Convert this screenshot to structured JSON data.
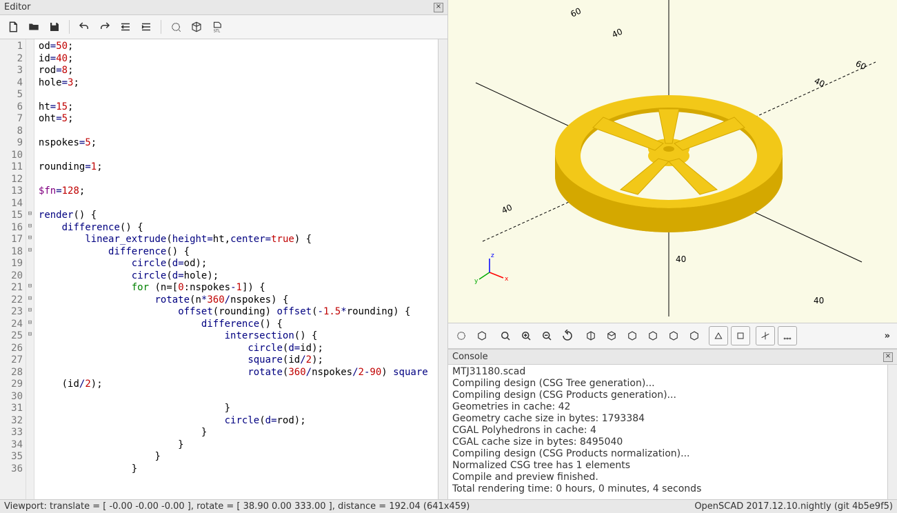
{
  "editor": {
    "title": "Editor",
    "toolbar_icons": [
      "new-file",
      "open-file",
      "save-file",
      "undo",
      "redo",
      "unindent",
      "indent",
      "preview",
      "render",
      "export-stl"
    ],
    "code_lines": [
      [
        {
          "t": "od",
          "c": "ident"
        },
        {
          "t": "=",
          "c": "op"
        },
        {
          "t": "50",
          "c": "num"
        },
        {
          "t": ";",
          "c": "punct"
        }
      ],
      [
        {
          "t": "id",
          "c": "ident"
        },
        {
          "t": "=",
          "c": "op"
        },
        {
          "t": "40",
          "c": "num"
        },
        {
          "t": ";",
          "c": "punct"
        }
      ],
      [
        {
          "t": "rod",
          "c": "ident"
        },
        {
          "t": "=",
          "c": "op"
        },
        {
          "t": "8",
          "c": "num"
        },
        {
          "t": ";",
          "c": "punct"
        }
      ],
      [
        {
          "t": "hole",
          "c": "ident"
        },
        {
          "t": "=",
          "c": "op"
        },
        {
          "t": "3",
          "c": "num"
        },
        {
          "t": ";",
          "c": "punct"
        }
      ],
      [],
      [
        {
          "t": "ht",
          "c": "ident"
        },
        {
          "t": "=",
          "c": "op"
        },
        {
          "t": "15",
          "c": "num"
        },
        {
          "t": ";",
          "c": "punct"
        }
      ],
      [
        {
          "t": "oht",
          "c": "ident"
        },
        {
          "t": "=",
          "c": "op"
        },
        {
          "t": "5",
          "c": "num"
        },
        {
          "t": ";",
          "c": "punct"
        }
      ],
      [],
      [
        {
          "t": "nspokes",
          "c": "ident"
        },
        {
          "t": "=",
          "c": "op"
        },
        {
          "t": "5",
          "c": "num"
        },
        {
          "t": ";",
          "c": "punct"
        }
      ],
      [],
      [
        {
          "t": "rounding",
          "c": "ident"
        },
        {
          "t": "=",
          "c": "op"
        },
        {
          "t": "1",
          "c": "num"
        },
        {
          "t": ";",
          "c": "punct"
        }
      ],
      [],
      [
        {
          "t": "$fn",
          "c": "spec"
        },
        {
          "t": "=",
          "c": "op"
        },
        {
          "t": "128",
          "c": "num"
        },
        {
          "t": ";",
          "c": "punct"
        }
      ],
      [],
      [
        {
          "t": "render",
          "c": "func"
        },
        {
          "t": "() {",
          "c": "punct"
        }
      ],
      [
        {
          "t": "    ",
          "c": "ws"
        },
        {
          "t": "difference",
          "c": "func"
        },
        {
          "t": "() {",
          "c": "punct"
        }
      ],
      [
        {
          "t": "        ",
          "c": "ws"
        },
        {
          "t": "linear_extrude",
          "c": "func"
        },
        {
          "t": "(",
          "c": "punct"
        },
        {
          "t": "height",
          "c": "param"
        },
        {
          "t": "=",
          "c": "op"
        },
        {
          "t": "ht",
          "c": "ident"
        },
        {
          "t": ",",
          "c": "punct"
        },
        {
          "t": "center",
          "c": "param"
        },
        {
          "t": "=",
          "c": "op"
        },
        {
          "t": "true",
          "c": "bool"
        },
        {
          "t": ") {",
          "c": "punct"
        }
      ],
      [
        {
          "t": "            ",
          "c": "ws"
        },
        {
          "t": "difference",
          "c": "func"
        },
        {
          "t": "() {",
          "c": "punct"
        }
      ],
      [
        {
          "t": "                ",
          "c": "ws"
        },
        {
          "t": "circle",
          "c": "func"
        },
        {
          "t": "(",
          "c": "punct"
        },
        {
          "t": "d",
          "c": "param"
        },
        {
          "t": "=",
          "c": "op"
        },
        {
          "t": "od",
          "c": "ident"
        },
        {
          "t": ");",
          "c": "punct"
        }
      ],
      [
        {
          "t": "                ",
          "c": "ws"
        },
        {
          "t": "circle",
          "c": "func"
        },
        {
          "t": "(",
          "c": "punct"
        },
        {
          "t": "d",
          "c": "param"
        },
        {
          "t": "=",
          "c": "op"
        },
        {
          "t": "hole",
          "c": "ident"
        },
        {
          "t": ");",
          "c": "punct"
        }
      ],
      [
        {
          "t": "                ",
          "c": "ws"
        },
        {
          "t": "for",
          "c": "kw"
        },
        {
          "t": " (",
          "c": "punct"
        },
        {
          "t": "n",
          "c": "ident"
        },
        {
          "t": "=[",
          "c": "punct"
        },
        {
          "t": "0",
          "c": "num"
        },
        {
          "t": ":",
          "c": "punct"
        },
        {
          "t": "nspokes",
          "c": "ident"
        },
        {
          "t": "-",
          "c": "op"
        },
        {
          "t": "1",
          "c": "num"
        },
        {
          "t": "]) {",
          "c": "punct"
        }
      ],
      [
        {
          "t": "                    ",
          "c": "ws"
        },
        {
          "t": "rotate",
          "c": "func"
        },
        {
          "t": "(",
          "c": "punct"
        },
        {
          "t": "n",
          "c": "ident"
        },
        {
          "t": "*",
          "c": "op"
        },
        {
          "t": "360",
          "c": "num"
        },
        {
          "t": "/",
          "c": "op"
        },
        {
          "t": "nspokes",
          "c": "ident"
        },
        {
          "t": ") {",
          "c": "punct"
        }
      ],
      [
        {
          "t": "                        ",
          "c": "ws"
        },
        {
          "t": "offset",
          "c": "func"
        },
        {
          "t": "(",
          "c": "punct"
        },
        {
          "t": "rounding",
          "c": "ident"
        },
        {
          "t": ") ",
          "c": "punct"
        },
        {
          "t": "offset",
          "c": "func"
        },
        {
          "t": "(",
          "c": "punct"
        },
        {
          "t": "-",
          "c": "op"
        },
        {
          "t": "1.5",
          "c": "num"
        },
        {
          "t": "*",
          "c": "op"
        },
        {
          "t": "rounding",
          "c": "ident"
        },
        {
          "t": ") {",
          "c": "punct"
        }
      ],
      [
        {
          "t": "                            ",
          "c": "ws"
        },
        {
          "t": "difference",
          "c": "func"
        },
        {
          "t": "() {",
          "c": "punct"
        }
      ],
      [
        {
          "t": "                                ",
          "c": "ws"
        },
        {
          "t": "intersection",
          "c": "func"
        },
        {
          "t": "() {",
          "c": "punct"
        }
      ],
      [
        {
          "t": "                                    ",
          "c": "ws"
        },
        {
          "t": "circle",
          "c": "func"
        },
        {
          "t": "(",
          "c": "punct"
        },
        {
          "t": "d",
          "c": "param"
        },
        {
          "t": "=",
          "c": "op"
        },
        {
          "t": "id",
          "c": "ident"
        },
        {
          "t": ");",
          "c": "punct"
        }
      ],
      [
        {
          "t": "                                    ",
          "c": "ws"
        },
        {
          "t": "square",
          "c": "func"
        },
        {
          "t": "(",
          "c": "punct"
        },
        {
          "t": "id",
          "c": "ident"
        },
        {
          "t": "/",
          "c": "op"
        },
        {
          "t": "2",
          "c": "num"
        },
        {
          "t": ");",
          "c": "punct"
        }
      ],
      [
        {
          "t": "                                    ",
          "c": "ws"
        },
        {
          "t": "rotate",
          "c": "func"
        },
        {
          "t": "(",
          "c": "punct"
        },
        {
          "t": "360",
          "c": "num"
        },
        {
          "t": "/",
          "c": "op"
        },
        {
          "t": "nspokes",
          "c": "ident"
        },
        {
          "t": "/",
          "c": "op"
        },
        {
          "t": "2",
          "c": "num"
        },
        {
          "t": "-",
          "c": "op"
        },
        {
          "t": "90",
          "c": "num"
        },
        {
          "t": ") ",
          "c": "punct"
        },
        {
          "t": "square",
          "c": "func"
        },
        {
          "t": " ",
          "c": "punct"
        }
      ],
      [
        {
          "t": "    (",
          "c": "punct"
        },
        {
          "t": "id",
          "c": "ident"
        },
        {
          "t": "/",
          "c": "op"
        },
        {
          "t": "2",
          "c": "num"
        },
        {
          "t": ");",
          "c": "punct"
        }
      ],
      [],
      [
        {
          "t": "                                }",
          "c": "punct"
        }
      ],
      [
        {
          "t": "                                ",
          "c": "ws"
        },
        {
          "t": "circle",
          "c": "func"
        },
        {
          "t": "(",
          "c": "punct"
        },
        {
          "t": "d",
          "c": "param"
        },
        {
          "t": "=",
          "c": "op"
        },
        {
          "t": "rod",
          "c": "ident"
        },
        {
          "t": ");",
          "c": "punct"
        }
      ],
      [
        {
          "t": "                            }",
          "c": "punct"
        }
      ],
      [
        {
          "t": "                        }",
          "c": "punct"
        }
      ],
      [
        {
          "t": "                    }",
          "c": "punct"
        }
      ],
      [
        {
          "t": "                }",
          "c": "punct"
        }
      ]
    ],
    "fold_markers": {
      "15": "⊟",
      "16": "⊟",
      "17": "⊟",
      "18": "⊟",
      "21": "⊟",
      "22": "⊟",
      "23": "⊟",
      "24": "⊟",
      "25": "⊟"
    },
    "line_count": 36
  },
  "viewport": {
    "background": "#fafae6",
    "model_color": "#f2c818",
    "model_shadow": "#d4a800",
    "axis_labels": [
      "60",
      "40",
      "40",
      "40",
      "60"
    ],
    "axis_color": "#000000",
    "gizmo": {
      "x": "#ff0000",
      "y": "#00aa00",
      "z": "#0000ff"
    }
  },
  "vp_toolbar": {
    "icons": [
      "preview",
      "render",
      "zoom-fit",
      "zoom-in",
      "zoom-out",
      "reset-view",
      "view-right",
      "view-top",
      "view-bottom",
      "view-left",
      "view-front",
      "view-back",
      "perspective",
      "ortho",
      "show-axes",
      "show-scale"
    ]
  },
  "console": {
    "title": "Console",
    "lines": [
      "MTJ31180.scad",
      "Compiling design (CSG Tree generation)...",
      "Compiling design (CSG Products generation)...",
      "Geometries in cache: 42",
      "Geometry cache size in bytes: 1793384",
      "CGAL Polyhedrons in cache: 4",
      "CGAL cache size in bytes: 8495040",
      "Compiling design (CSG Products normalization)...",
      "Normalized CSG tree has 1 elements",
      "Compile and preview finished.",
      "Total rendering time: 0 hours, 0 minutes, 4 seconds"
    ]
  },
  "statusbar": {
    "left": "Viewport: translate = [ -0.00 -0.00 -0.00 ], rotate = [ 38.90 0.00 333.00 ], distance = 192.04 (641x459)",
    "right": "OpenSCAD 2017.12.10.nightly (git 4b5e9f5)"
  }
}
